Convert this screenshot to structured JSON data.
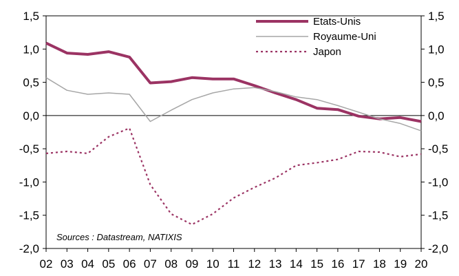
{
  "chart_data": {
    "type": "line",
    "x": [
      "02",
      "03",
      "04",
      "05",
      "06",
      "07",
      "08",
      "09",
      "10",
      "11",
      "12",
      "13",
      "14",
      "15",
      "16",
      "17",
      "18",
      "19",
      "20"
    ],
    "ylim": [
      -2.0,
      1.5
    ],
    "yticks_left": [
      "1,5",
      "1,0",
      "0,5",
      "0,0",
      "-0,5",
      "-1,0",
      "-1,5",
      "-2,0"
    ],
    "yticks_right": [
      "1,5",
      "1,0",
      "0,5",
      "0,0",
      "-0,5",
      "-1,0",
      "-1,5",
      "-2,0"
    ],
    "ytick_values": [
      1.5,
      1.0,
      0.5,
      0.0,
      -0.5,
      -1.0,
      -1.5,
      -2.0
    ],
    "grid": false,
    "legend_position": "top-right",
    "annotation": "Sources : Datastream, NATIXIS",
    "series": [
      {
        "name": "Etats-Unis",
        "color": "#9b3363",
        "style": "solid-thick",
        "values": [
          1.09,
          0.94,
          0.92,
          0.96,
          0.88,
          0.49,
          0.51,
          0.57,
          0.55,
          0.55,
          0.45,
          0.34,
          0.24,
          0.11,
          0.09,
          -0.01,
          -0.05,
          -0.03,
          -0.09
        ]
      },
      {
        "name": "Royaume-Uni",
        "color": "#a6a6a6",
        "style": "solid-thin",
        "values": [
          0.57,
          0.38,
          0.32,
          0.34,
          0.32,
          -0.09,
          0.08,
          0.24,
          0.34,
          0.4,
          0.42,
          0.36,
          0.28,
          0.24,
          0.15,
          0.05,
          -0.05,
          -0.12,
          -0.23
        ]
      },
      {
        "name": "Japon",
        "color": "#9b3363",
        "style": "dotted",
        "values": [
          -0.57,
          -0.54,
          -0.57,
          -0.32,
          -0.19,
          -1.04,
          -1.48,
          -1.64,
          -1.48,
          -1.24,
          -1.08,
          -0.94,
          -0.75,
          -0.71,
          -0.66,
          -0.54,
          -0.55,
          -0.62,
          -0.58
        ]
      }
    ]
  }
}
